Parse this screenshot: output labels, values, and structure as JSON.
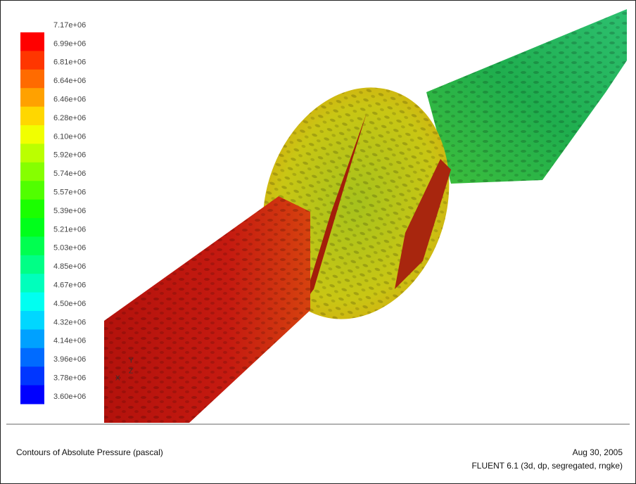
{
  "colorbar": {
    "labels": [
      "7.17e+06",
      "6.99e+06",
      "6.81e+06",
      "6.64e+06",
      "6.46e+06",
      "6.28e+06",
      "6.10e+06",
      "5.92e+06",
      "5.74e+06",
      "5.57e+06",
      "5.39e+06",
      "5.21e+06",
      "5.03e+06",
      "4.85e+06",
      "4.67e+06",
      "4.50e+06",
      "4.32e+06",
      "4.14e+06",
      "3.96e+06",
      "3.78e+06",
      "3.60e+06"
    ],
    "colors": [
      "#ff0000",
      "#ff3600",
      "#ff6b00",
      "#ffa100",
      "#ffd700",
      "#f1ff00",
      "#bbff00",
      "#86ff00",
      "#51ff00",
      "#1bff00",
      "#00ff1b",
      "#00ff50",
      "#00ff86",
      "#00ffbc",
      "#00fff1",
      "#00d7ff",
      "#00a1ff",
      "#006bff",
      "#0036ff",
      "#0000ff"
    ]
  },
  "axes": {
    "labels": [
      "Y",
      "Z",
      "X"
    ]
  },
  "footer": {
    "title": "Contours of Absolute Pressure (pascal)",
    "date": "Aug 30, 2005",
    "version": "FLUENT 6.1 (3d, dp, segregated, rngke)"
  }
}
